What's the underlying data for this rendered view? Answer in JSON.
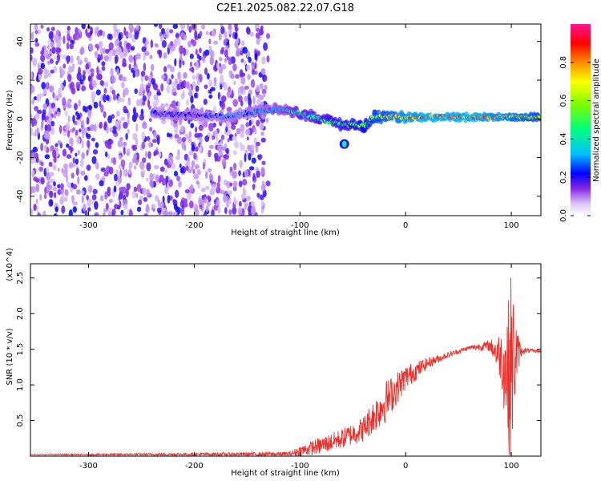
{
  "title": "C2E1.2025.082.22.07.G18",
  "chart_data": [
    {
      "type": "heatmap",
      "xlabel": "Height of straight line (km)",
      "ylabel": "Frequency (Hz)",
      "xlim": [
        -355,
        128
      ],
      "ylim": [
        -50,
        49
      ],
      "xticks": [
        -300,
        -200,
        -100,
        0,
        100
      ],
      "yticks": [
        -40,
        -20,
        0,
        20,
        40
      ],
      "colorbar": {
        "label": "Normalized spectral amplitude",
        "range": [
          0,
          1
        ],
        "ticks": [
          "0.0",
          "0.2",
          "0.4",
          "0.6",
          "0.8"
        ],
        "tick_values": [
          0.0,
          0.2,
          0.4,
          0.6,
          0.8
        ],
        "colors": [
          "#ffffff",
          "#dcc8f8",
          "#8a2be2",
          "#0000ff",
          "#00bfff",
          "#00ff7f",
          "#7cfc00",
          "#ffff00",
          "#ff8c00",
          "#ff0000",
          "#ff1493"
        ]
      },
      "noise_region": {
        "x_range": [
          -355,
          -130
        ],
        "freq_range": [
          -50,
          49
        ],
        "amplitude": 0.2
      },
      "signal_track": {
        "x": [
          -240,
          -200,
          -170,
          -140,
          -120,
          -100,
          -80,
          -60,
          -50,
          -40,
          -30,
          -20,
          -10,
          0,
          20,
          40,
          60,
          80,
          100,
          120,
          128
        ],
        "freq": [
          3,
          2,
          1,
          4,
          5,
          3,
          0,
          -3,
          -3,
          -4,
          1,
          1,
          1,
          1,
          1,
          1,
          1,
          1,
          1,
          1,
          1
        ],
        "amplitude": [
          0.25,
          0.2,
          0.3,
          0.3,
          0.35,
          0.45,
          0.5,
          0.55,
          0.55,
          0.6,
          0.7,
          0.75,
          0.8,
          0.85,
          0.9,
          0.9,
          0.9,
          0.85,
          0.8,
          0.75,
          0.7
        ]
      },
      "blob": {
        "x": -58,
        "freq": -13,
        "amplitude": 0.45
      }
    },
    {
      "type": "line",
      "xlabel": "Height of straight line (km)",
      "ylabel": "SNR (10 * v/v)",
      "scale_label": "(x10^4)",
      "xlim": [
        -355,
        128
      ],
      "ylim": [
        0,
        2.7
      ],
      "xticks": [
        -300,
        -200,
        -100,
        0,
        100
      ],
      "yticks": [
        0.5,
        1.0,
        1.5,
        2.0,
        2.5
      ],
      "ytick_labels": [
        "0.5",
        "1.0",
        "1.5",
        "2.0",
        "2.5"
      ],
      "color": "#e8302c",
      "envelope": {
        "x": [
          -355,
          -110,
          -100,
          -80,
          -60,
          -40,
          -20,
          0,
          20,
          40,
          60,
          80,
          90,
          95,
          98,
          100,
          103,
          106,
          110,
          120,
          128
        ],
        "mean": [
          0.02,
          0.03,
          0.07,
          0.15,
          0.25,
          0.38,
          0.75,
          1.1,
          1.3,
          1.42,
          1.52,
          1.55,
          1.4,
          1.2,
          1.1,
          1.3,
          1.4,
          1.45,
          1.48,
          1.48,
          1.47
        ],
        "amp": [
          0.005,
          0.03,
          0.08,
          0.12,
          0.14,
          0.18,
          0.3,
          0.18,
          0.08,
          0.04,
          0.03,
          0.08,
          0.35,
          0.8,
          1.2,
          1.35,
          0.8,
          0.3,
          0.05,
          0.02,
          0.02
        ]
      }
    }
  ]
}
